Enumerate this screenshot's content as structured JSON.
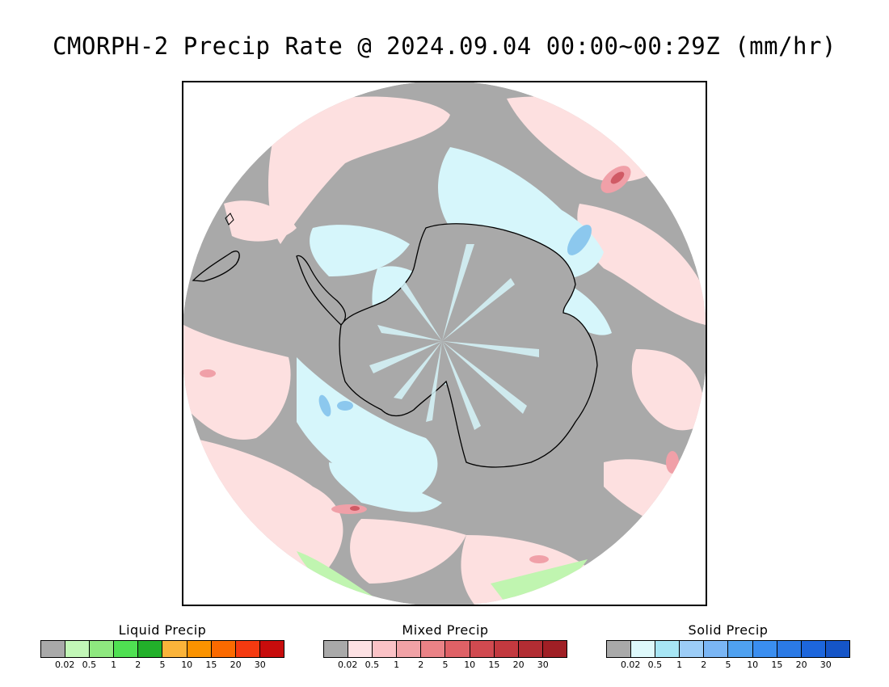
{
  "title": "CMORPH-2 Precip Rate @ 2024.09.04 00:00~00:29Z (mm/hr)",
  "map": {
    "projection": "south-polar-stereographic",
    "colors": {
      "ocean_no_precip": "#a9a9a9",
      "mixed_light": "#fde0e0",
      "mixed_mid": "#f0a0a8",
      "mixed_heavy": "#d05a64",
      "solid_light": "#d6f6fb",
      "solid_mid": "#a8e0f4",
      "solid_blue": "#8cc8ee",
      "liquid_light": "#c0f5b0",
      "coastline": "#000000"
    }
  },
  "legends": [
    {
      "title": "Liquid Precip",
      "colors": [
        "#a9a9a9",
        "#c2f7b7",
        "#8ee87f",
        "#4fe052",
        "#22b02a",
        "#fbb43a",
        "#fb9300",
        "#fb6a00",
        "#f53a10",
        "#c80c0c"
      ],
      "ticks": [
        "0.02",
        "0.5",
        "1",
        "2",
        "5",
        "10",
        "15",
        "20",
        "30"
      ]
    },
    {
      "title": "Mixed Precip",
      "colors": [
        "#a9a9a9",
        "#fde1e3",
        "#fbc2c6",
        "#f1a2a6",
        "#ea8286",
        "#df6166",
        "#d14a50",
        "#c3393f",
        "#b22d33",
        "#a01f25"
      ],
      "ticks": [
        "0.02",
        "0.5",
        "1",
        "2",
        "5",
        "10",
        "15",
        "20",
        "30"
      ]
    },
    {
      "title": "Solid Precip",
      "colors": [
        "#a9a9a9",
        "#def9fb",
        "#a7e6f5",
        "#9ccdf7",
        "#7ab6f5",
        "#4fa1f0",
        "#3a8ef0",
        "#2b7ae6",
        "#1d66dc",
        "#1555c8"
      ],
      "ticks": [
        "0.02",
        "0.5",
        "1",
        "2",
        "5",
        "10",
        "15",
        "20",
        "30"
      ]
    }
  ]
}
